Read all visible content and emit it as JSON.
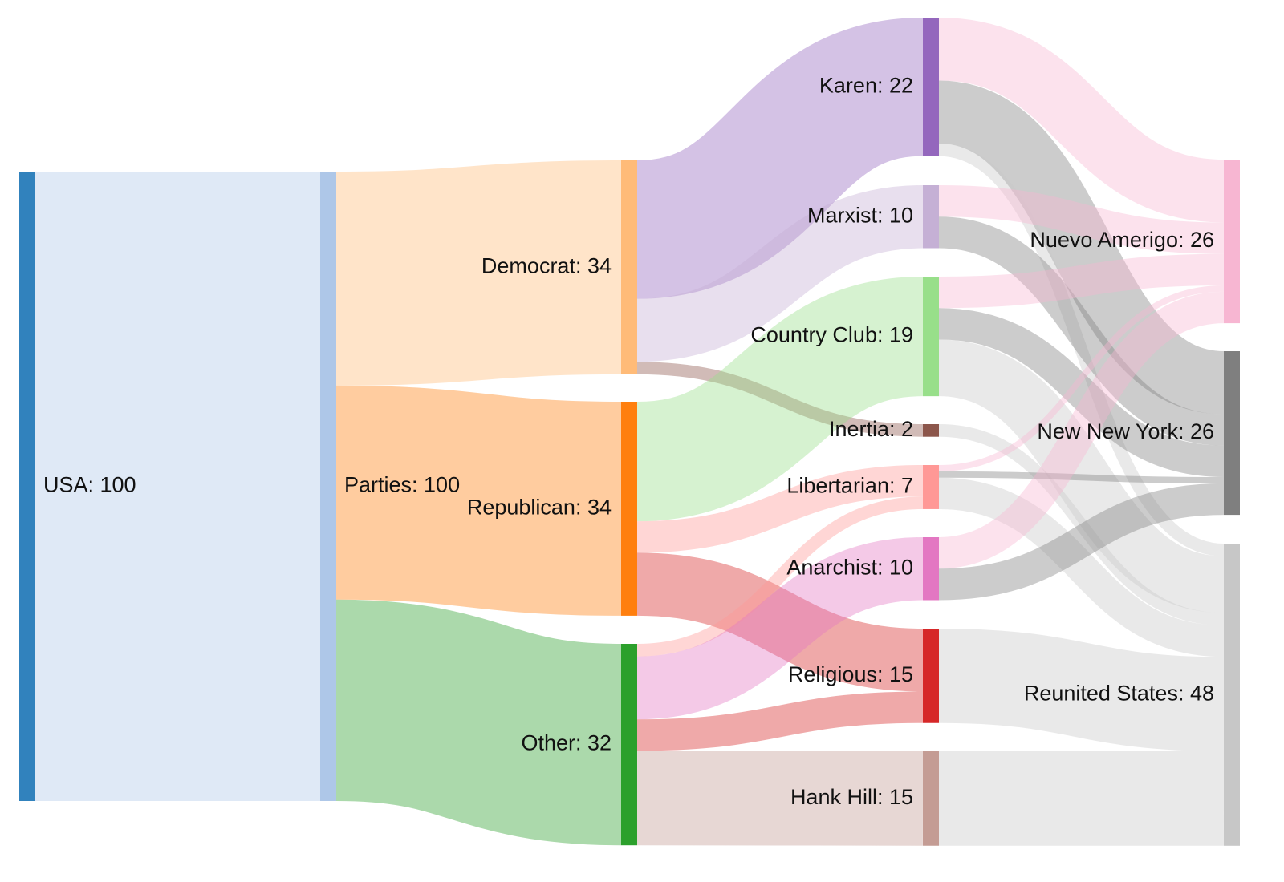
{
  "chart_data": {
    "type": "sankey",
    "columns": [
      [
        "usa"
      ],
      [
        "parties"
      ],
      [
        "democrat",
        "republican",
        "other"
      ],
      [
        "karen",
        "marxist",
        "country_club",
        "inertia",
        "libertarian",
        "anarchist",
        "religious",
        "hank_hill"
      ],
      [
        "nuevo_amerigo",
        "new_new_york",
        "reunited_states"
      ]
    ],
    "nodes": [
      {
        "id": "usa",
        "label": "USA: 100",
        "value": 100,
        "color": "#3182bd"
      },
      {
        "id": "parties",
        "label": "Parties: 100",
        "value": 100,
        "color": "#aec7e8"
      },
      {
        "id": "democrat",
        "label": "Democrat: 34",
        "value": 34,
        "color": "#ffbb78"
      },
      {
        "id": "republican",
        "label": "Republican: 34",
        "value": 34,
        "color": "#ff7f0e"
      },
      {
        "id": "other",
        "label": "Other: 32",
        "value": 32,
        "color": "#2ca02c"
      },
      {
        "id": "karen",
        "label": "Karen: 22",
        "value": 22,
        "color": "#9467bd"
      },
      {
        "id": "marxist",
        "label": "Marxist: 10",
        "value": 10,
        "color": "#c5b0d5"
      },
      {
        "id": "country_club",
        "label": "Country Club: 19",
        "value": 19,
        "color": "#98df8a"
      },
      {
        "id": "inertia",
        "label": "Inertia: 2",
        "value": 2,
        "color": "#8c564b"
      },
      {
        "id": "libertarian",
        "label": "Libertarian: 7",
        "value": 7,
        "color": "#ff9896"
      },
      {
        "id": "anarchist",
        "label": "Anarchist: 10",
        "value": 10,
        "color": "#e377c2"
      },
      {
        "id": "religious",
        "label": "Religious: 15",
        "value": 15,
        "color": "#d62728"
      },
      {
        "id": "hank_hill",
        "label": "Hank Hill: 15",
        "value": 15,
        "color": "#c49c94"
      },
      {
        "id": "nuevo_amerigo",
        "label": "Nuevo Amerigo: 26",
        "value": 26,
        "color": "#f7b6d2"
      },
      {
        "id": "new_new_york",
        "label": "New New York: 26",
        "value": 26,
        "color": "#7f7f7f"
      },
      {
        "id": "reunited_states",
        "label": "Reunited States: 48",
        "value": 48,
        "color": "#c7c7c7"
      }
    ],
    "links": [
      {
        "source": "usa",
        "target": "parties",
        "value": 100
      },
      {
        "source": "parties",
        "target": "democrat",
        "value": 34
      },
      {
        "source": "parties",
        "target": "republican",
        "value": 34
      },
      {
        "source": "parties",
        "target": "other",
        "value": 32
      },
      {
        "source": "democrat",
        "target": "karen",
        "value": 22
      },
      {
        "source": "democrat",
        "target": "marxist",
        "value": 10
      },
      {
        "source": "democrat",
        "target": "inertia",
        "value": 2
      },
      {
        "source": "republican",
        "target": "country_club",
        "value": 19
      },
      {
        "source": "republican",
        "target": "libertarian",
        "value": 5
      },
      {
        "source": "republican",
        "target": "religious",
        "value": 10
      },
      {
        "source": "other",
        "target": "libertarian",
        "value": 2
      },
      {
        "source": "other",
        "target": "anarchist",
        "value": 10
      },
      {
        "source": "other",
        "target": "religious",
        "value": 5
      },
      {
        "source": "other",
        "target": "hank_hill",
        "value": 15
      },
      {
        "source": "karen",
        "target": "nuevo_amerigo",
        "value": 10
      },
      {
        "source": "karen",
        "target": "new_new_york",
        "value": 10
      },
      {
        "source": "karen",
        "target": "reunited_states",
        "value": 2
      },
      {
        "source": "marxist",
        "target": "nuevo_amerigo",
        "value": 5
      },
      {
        "source": "marxist",
        "target": "new_new_york",
        "value": 5
      },
      {
        "source": "country_club",
        "target": "nuevo_amerigo",
        "value": 5
      },
      {
        "source": "country_club",
        "target": "new_new_york",
        "value": 5
      },
      {
        "source": "country_club",
        "target": "reunited_states",
        "value": 9
      },
      {
        "source": "inertia",
        "target": "reunited_states",
        "value": 2
      },
      {
        "source": "libertarian",
        "target": "nuevo_amerigo",
        "value": 1
      },
      {
        "source": "libertarian",
        "target": "new_new_york",
        "value": 1
      },
      {
        "source": "libertarian",
        "target": "reunited_states",
        "value": 5
      },
      {
        "source": "anarchist",
        "target": "nuevo_amerigo",
        "value": 5
      },
      {
        "source": "anarchist",
        "target": "new_new_york",
        "value": 5
      },
      {
        "source": "religious",
        "target": "reunited_states",
        "value": 15
      },
      {
        "source": "hank_hill",
        "target": "reunited_states",
        "value": 15
      }
    ],
    "link_color_rule": "target node color at low opacity; links into New New York and Reunited States use grey"
  }
}
